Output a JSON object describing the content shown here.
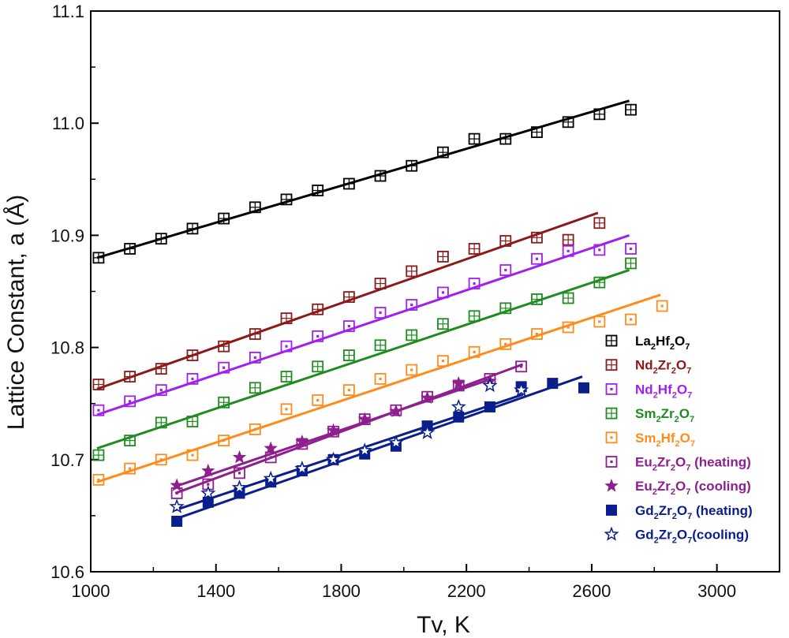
{
  "chart_data": {
    "type": "scatter",
    "title": "",
    "xlabel": "Tv, K",
    "ylabel": "Lattice Constant, a (Å)",
    "xlim": [
      1000,
      3200
    ],
    "ylim": [
      10.6,
      11.1
    ],
    "xticks": [
      "1000",
      "1400",
      "1800",
      "2200",
      "2600",
      "3000"
    ],
    "yticks": [
      "10.6",
      "10.7",
      "10.8",
      "10.9",
      "11.0",
      "11.1"
    ],
    "grid": false,
    "legend_position": "bottom-right",
    "series": [
      {
        "name": "La2Hf2O7",
        "label_parts": [
          [
            "La",
            ""
          ],
          [
            "2",
            "sub"
          ],
          [
            "Hf",
            ""
          ],
          [
            "2",
            "sub"
          ],
          [
            "O",
            ""
          ],
          [
            "7",
            "sub"
          ]
        ],
        "color": "#000000",
        "marker": "square-grid",
        "x": [
          1025,
          1125,
          1225,
          1325,
          1425,
          1525,
          1625,
          1725,
          1825,
          1925,
          2025,
          2125,
          2225,
          2325,
          2425,
          2525,
          2625,
          2725
        ],
        "y": [
          10.88,
          10.888,
          10.897,
          10.906,
          10.915,
          10.925,
          10.932,
          10.94,
          10.946,
          10.953,
          10.962,
          10.974,
          10.986,
          10.986,
          10.992,
          11.001,
          11.008,
          11.012
        ],
        "fit": {
          "x": [
            1020,
            2720
          ],
          "y": [
            10.88,
            11.02
          ]
        }
      },
      {
        "name": "Nd2Zr2O7",
        "label_parts": [
          [
            "Nd",
            ""
          ],
          [
            "2",
            "sub"
          ],
          [
            "Zr",
            ""
          ],
          [
            "2",
            "sub"
          ],
          [
            "O",
            ""
          ],
          [
            "7",
            "sub"
          ]
        ],
        "color": "#8b1a1a",
        "marker": "square-grid",
        "x": [
          1025,
          1125,
          1225,
          1325,
          1425,
          1525,
          1625,
          1725,
          1825,
          1925,
          2025,
          2125,
          2225,
          2325,
          2425,
          2525,
          2625
        ],
        "y": [
          10.767,
          10.774,
          10.781,
          10.793,
          10.801,
          10.812,
          10.826,
          10.834,
          10.845,
          10.857,
          10.868,
          10.881,
          10.888,
          10.895,
          10.898,
          10.896,
          10.911
        ],
        "fit": {
          "x": [
            1020,
            2620
          ],
          "y": [
            10.763,
            10.92
          ]
        }
      },
      {
        "name": "Nd2Hf2O7",
        "label_parts": [
          [
            "Nd",
            ""
          ],
          [
            "2",
            "sub"
          ],
          [
            "Hf",
            ""
          ],
          [
            "2",
            "sub"
          ],
          [
            "O",
            ""
          ],
          [
            "7",
            "sub"
          ]
        ],
        "color": "#a020f0",
        "marker": "square-dot",
        "x": [
          1025,
          1125,
          1225,
          1325,
          1425,
          1525,
          1625,
          1725,
          1825,
          1925,
          2025,
          2125,
          2225,
          2325,
          2425,
          2525,
          2625,
          2725
        ],
        "y": [
          10.744,
          10.752,
          10.762,
          10.772,
          10.782,
          10.791,
          10.801,
          10.81,
          10.819,
          10.831,
          10.838,
          10.849,
          10.857,
          10.869,
          10.879,
          10.886,
          10.887,
          10.888
        ],
        "fit": {
          "x": [
            1020,
            2720
          ],
          "y": [
            10.74,
            10.9
          ]
        }
      },
      {
        "name": "Sm2Zr2O7",
        "label_parts": [
          [
            "Sm",
            ""
          ],
          [
            "2",
            "sub"
          ],
          [
            "Zr",
            ""
          ],
          [
            "2",
            "sub"
          ],
          [
            "O",
            ""
          ],
          [
            "7",
            "sub"
          ]
        ],
        "color": "#1e8c1e",
        "marker": "square-grid",
        "x": [
          1025,
          1125,
          1225,
          1325,
          1425,
          1525,
          1625,
          1725,
          1825,
          1925,
          2025,
          2125,
          2225,
          2325,
          2425,
          2525,
          2625,
          2725
        ],
        "y": [
          10.704,
          10.717,
          10.733,
          10.734,
          10.751,
          10.764,
          10.774,
          10.783,
          10.793,
          10.802,
          10.811,
          10.821,
          10.828,
          10.835,
          10.843,
          10.844,
          10.858,
          10.875
        ],
        "fit": {
          "x": [
            1020,
            2720
          ],
          "y": [
            10.71,
            10.869
          ]
        }
      },
      {
        "name": "Sm2Hf2O7",
        "label_parts": [
          [
            "Sm",
            ""
          ],
          [
            "2",
            "sub"
          ],
          [
            "Hf",
            ""
          ],
          [
            "2",
            "sub"
          ],
          [
            "O",
            ""
          ],
          [
            "7",
            "sub"
          ]
        ],
        "color": "#ff8c1a",
        "marker": "square-dot",
        "x": [
          1025,
          1125,
          1225,
          1325,
          1425,
          1525,
          1625,
          1725,
          1825,
          1925,
          2025,
          2125,
          2225,
          2325,
          2425,
          2525,
          2625,
          2725,
          2825
        ],
        "y": [
          10.682,
          10.692,
          10.7,
          10.704,
          10.717,
          10.727,
          10.745,
          10.753,
          10.762,
          10.772,
          10.78,
          10.788,
          10.796,
          10.803,
          10.812,
          10.818,
          10.823,
          10.825,
          10.837
        ],
        "fit": {
          "x": [
            1020,
            2820
          ],
          "y": [
            10.68,
            10.847
          ]
        }
      },
      {
        "name": "Eu2Zr2O7 (heating)",
        "label_parts": [
          [
            "Eu",
            ""
          ],
          [
            "2",
            "sub"
          ],
          [
            "Zr",
            ""
          ],
          [
            "2",
            "sub"
          ],
          [
            "O",
            ""
          ],
          [
            "7",
            "sub"
          ],
          [
            " (heating)",
            ""
          ]
        ],
        "color": "#8e1f8e",
        "marker": "square-dot",
        "x": [
          1275,
          1375,
          1475,
          1575,
          1675,
          1775,
          1875,
          1975,
          2075,
          2175,
          2275,
          2375
        ],
        "y": [
          10.67,
          10.678,
          10.688,
          10.702,
          10.714,
          10.725,
          10.736,
          10.744,
          10.756,
          10.766,
          10.772,
          10.783
        ],
        "fit": {
          "x": [
            1270,
            2380
          ],
          "y": [
            10.67,
            10.785
          ]
        }
      },
      {
        "name": "Eu2Zr2O7 (cooling)",
        "label_parts": [
          [
            "Eu",
            ""
          ],
          [
            "2",
            "sub"
          ],
          [
            "Zr",
            ""
          ],
          [
            "2",
            "sub"
          ],
          [
            "O",
            ""
          ],
          [
            "7",
            "sub"
          ],
          [
            " (cooling)",
            ""
          ]
        ],
        "color": "#8e1f8e",
        "marker": "star-filled",
        "x": [
          1275,
          1375,
          1475,
          1575,
          1675,
          1775,
          1875,
          1975,
          2075,
          2175,
          2275
        ],
        "y": [
          10.677,
          10.69,
          10.702,
          10.71,
          10.716,
          10.726,
          10.736,
          10.743,
          10.755,
          10.768,
          10.77
        ],
        "fit": {
          "x": [
            1270,
            2280
          ],
          "y": [
            10.676,
            10.772
          ]
        }
      },
      {
        "name": "Gd2Zr2O7 (heating)",
        "label_parts": [
          [
            "Gd",
            ""
          ],
          [
            "2",
            "sub"
          ],
          [
            "Zr",
            ""
          ],
          [
            "2",
            "sub"
          ],
          [
            "O",
            ""
          ],
          [
            "7",
            "sub"
          ],
          [
            " (heating)",
            ""
          ]
        ],
        "color": "#0a1e8c",
        "marker": "square-filled",
        "x": [
          1275,
          1375,
          1475,
          1575,
          1675,
          1775,
          1875,
          1975,
          2075,
          2175,
          2275,
          2375,
          2475,
          2575
        ],
        "y": [
          10.645,
          10.662,
          10.67,
          10.68,
          10.69,
          10.7,
          10.705,
          10.712,
          10.73,
          10.738,
          10.747,
          10.765,
          10.768,
          10.764
        ],
        "fit": {
          "x": [
            1270,
            2570
          ],
          "y": [
            10.647,
            10.774
          ]
        }
      },
      {
        "name": "Gd2Zr2O7 (cooling)",
        "label_parts": [
          [
            "Gd",
            ""
          ],
          [
            "2",
            "sub"
          ],
          [
            "Zr",
            ""
          ],
          [
            "2",
            "sub"
          ],
          [
            "O",
            ""
          ],
          [
            "7",
            "sub"
          ],
          [
            "(cooling)",
            ""
          ]
        ],
        "color": "#0a1e8c",
        "marker": "star-open",
        "x": [
          1275,
          1375,
          1475,
          1575,
          1675,
          1775,
          1875,
          1975,
          2075,
          2175,
          2275,
          2375
        ],
        "y": [
          10.658,
          10.67,
          10.675,
          10.683,
          10.692,
          10.7,
          10.708,
          10.715,
          10.724,
          10.747,
          10.766,
          10.762
        ],
        "fit": {
          "x": [
            1270,
            2380
          ],
          "y": [
            10.655,
            10.758
          ]
        }
      }
    ]
  }
}
